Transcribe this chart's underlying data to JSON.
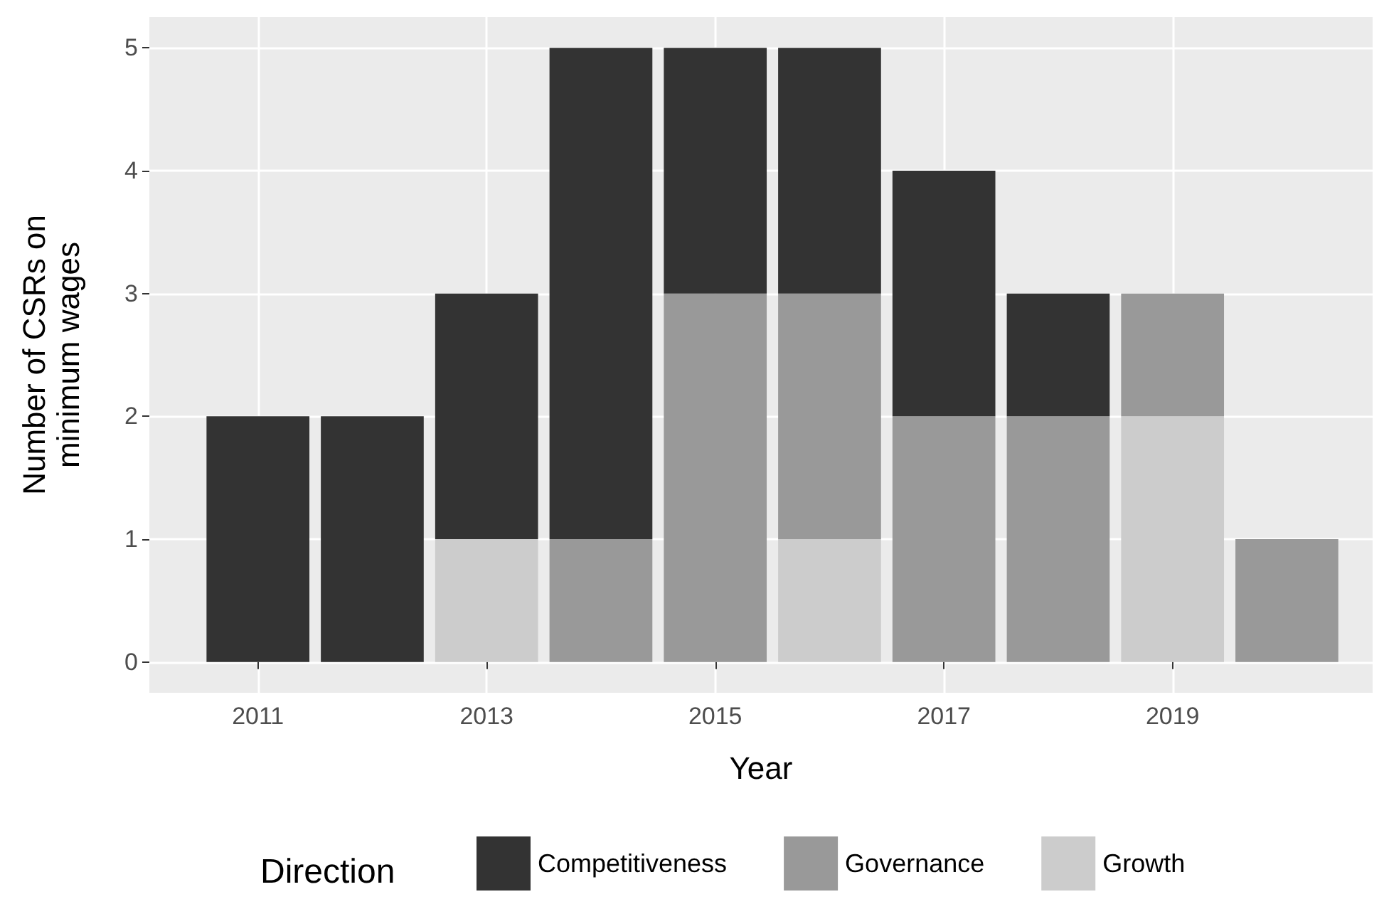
{
  "chart_data": {
    "type": "bar",
    "stacked": true,
    "xlabel": "Year",
    "ylabel": "Number of CSRs on minimum wages",
    "legend_title": "Direction",
    "legend": "bottom",
    "grid": true,
    "x": [
      2011,
      2012,
      2013,
      2014,
      2015,
      2016,
      2017,
      2018,
      2019,
      2020
    ],
    "xlim": [
      2010.05,
      2020.75
    ],
    "xticks": [
      2011,
      2013,
      2015,
      2017,
      2019
    ],
    "ylim": [
      -0.25,
      5.25
    ],
    "yticks": [
      0,
      1,
      2,
      3,
      4,
      5
    ],
    "series": [
      {
        "name": "Growth",
        "color": "#cccccc",
        "values": [
          0,
          0,
          1,
          0,
          0,
          1,
          0,
          0,
          2,
          0
        ]
      },
      {
        "name": "Governance",
        "color": "#999999",
        "values": [
          0,
          0,
          0,
          1,
          3,
          2,
          2,
          2,
          1,
          1
        ]
      },
      {
        "name": "Competitiveness",
        "color": "#333333",
        "values": [
          2,
          2,
          2,
          4,
          2,
          2,
          2,
          1,
          0,
          0
        ]
      }
    ]
  }
}
